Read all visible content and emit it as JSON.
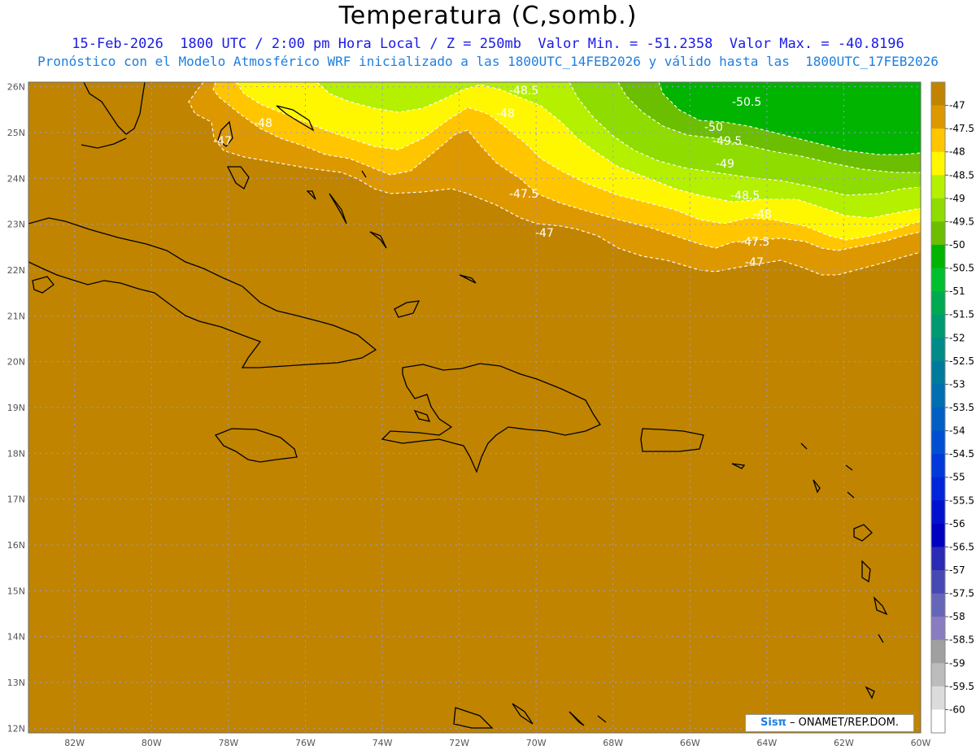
{
  "header": {
    "title": "Temperatura (C,somb.)",
    "line1": "15-Feb-2026  1800 UTC / 2:00 pm Hora Local / Z = 250mb  Valor Min. = -51.2358  Valor Max. = -40.8196",
    "line2": "Pronóstico con el Modelo Atmosférico WRF inicializado a las 1800UTC_14FEB2026 y válido hasta las  1800UTC_17FEB2026"
  },
  "map": {
    "lon_range": [
      -83.2,
      -60
    ],
    "lat_range": [
      11.9,
      26.1
    ],
    "lon_ticks": [
      "82W",
      "80W",
      "78W",
      "76W",
      "74W",
      "72W",
      "70W",
      "68W",
      "66W",
      "64W",
      "62W",
      "60W"
    ],
    "lat_ticks": [
      "12N",
      "13N",
      "14N",
      "15N",
      "16N",
      "17N",
      "18N",
      "19N",
      "20N",
      "21N",
      "22N",
      "23N",
      "24N",
      "25N",
      "26N"
    ],
    "contour_labels": [
      "-48.5",
      "-50.5",
      "-48",
      "-47",
      "-48",
      "-50",
      "-49.5",
      "-49",
      "-47.5",
      "-48.5",
      "-48",
      "-47",
      "-47.5",
      "-47"
    ],
    "colors": {
      "c47": "#c08400",
      "c47_5": "#dd9800",
      "c48": "#ffc600",
      "c48_5": "#fff700",
      "c49": "#b4f000",
      "c49_5": "#8fdc00",
      "c50": "#6cbe00",
      "c50_5": "#00b400"
    }
  },
  "colorbar": {
    "labels": [
      "-47",
      "-47.5",
      "-48",
      "-48.5",
      "-49",
      "-49.5",
      "-50",
      "-50.5",
      "-51",
      "-51.5",
      "-52",
      "-52.5",
      "-53",
      "-53.5",
      "-54",
      "-54.5",
      "-55",
      "-55.5",
      "-56",
      "-56.5",
      "-57",
      "-57.5",
      "-58",
      "-58.5",
      "-59",
      "-59.5",
      "-60"
    ],
    "colors": [
      "#c08400",
      "#dd9800",
      "#ffc600",
      "#fff700",
      "#b4f000",
      "#8fdc00",
      "#6cbe00",
      "#00b400",
      "#00c030",
      "#00aa50",
      "#009a70",
      "#008a88",
      "#007a9c",
      "#006eb0",
      "#005ec4",
      "#004ed2",
      "#0038dc",
      "#0024dc",
      "#0012d0",
      "#0000c0",
      "#2a2ab4",
      "#4848b4",
      "#6666b8",
      "#8a7cc0",
      "#a0a0a0",
      "#bcbcbc",
      "#dcdcdc",
      "#ffffff"
    ]
  },
  "credit": {
    "brand": "Sisπ",
    "text": " – ONAMET/REP.DOM."
  }
}
